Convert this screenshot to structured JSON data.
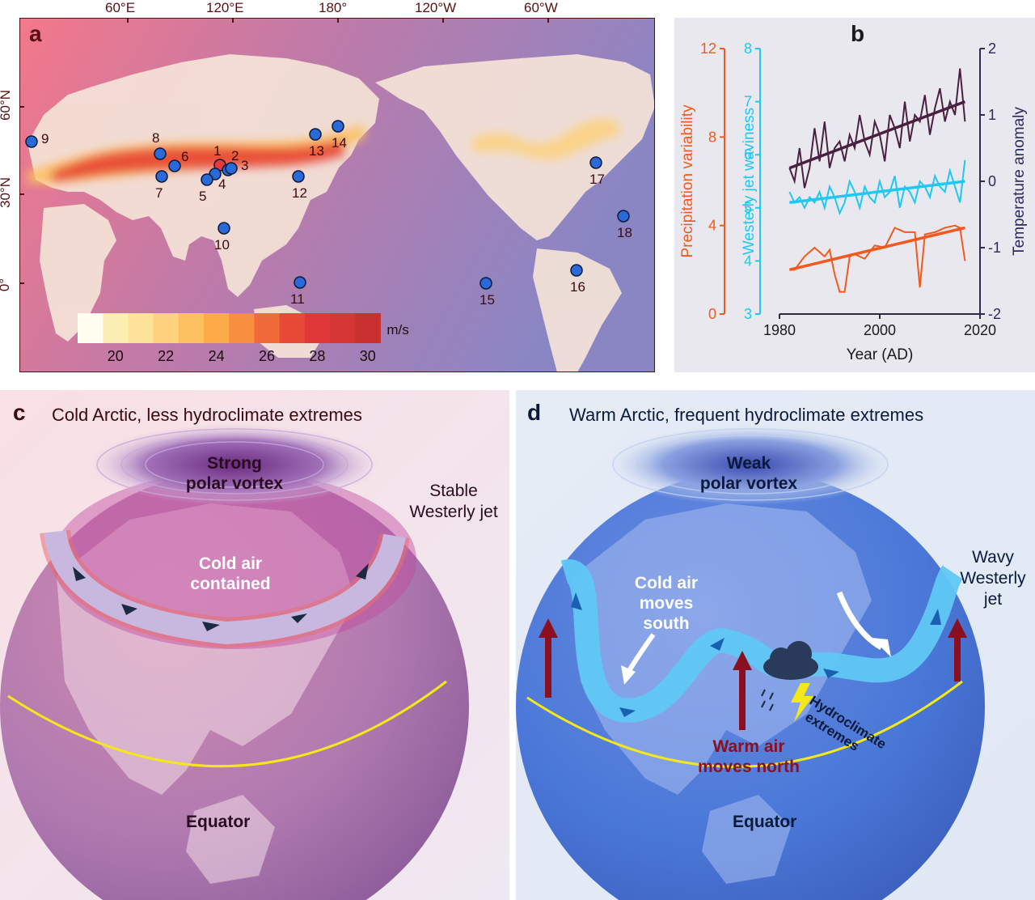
{
  "panel_a": {
    "label": "a",
    "lon_ticks": [
      "60°E",
      "120°E",
      "180°",
      "120°W",
      "60°W"
    ],
    "lat_ticks": [
      "60°N",
      "30°N",
      "0°"
    ],
    "colorbar_ticks": [
      "20",
      "22",
      "24",
      "26",
      "28",
      "30"
    ],
    "colorbar_unit": "m/s",
    "colors": [
      "#fffcf0",
      "#fdeeb4",
      "#fde39a",
      "#fdd27c",
      "#fdc05e",
      "#fdaa48",
      "#f88e40",
      "#f06a3a",
      "#e84a38",
      "#e03838",
      "#d63636",
      "#c83030"
    ],
    "sites": [
      "1",
      "2",
      "3",
      "4",
      "5",
      "6",
      "7",
      "8",
      "9",
      "10",
      "11",
      "12",
      "13",
      "14",
      "15",
      "16",
      "17",
      "18"
    ]
  },
  "panel_b": {
    "label": "b",
    "xlabel": "Year (AD)",
    "x_ticks": [
      "1980",
      "2000",
      "2020"
    ],
    "left1_label": "Precipitation variability",
    "left1_ticks": [
      "0",
      "4",
      "8",
      "12"
    ],
    "left2_label": "Westerly jet waviness",
    "left2_ticks": [
      "3",
      "4",
      "5",
      "6",
      "7",
      "8"
    ],
    "right_label": "Temperature anomaly",
    "right_ticks": [
      "-2",
      "-1",
      "0",
      "1",
      "2"
    ],
    "colors": {
      "precip": "#f05a1e",
      "waviness": "#1ec8f0",
      "temperature": "#4a2040"
    }
  },
  "chart_data": {
    "type": "line",
    "xlabel": "Year (AD)",
    "xlim": [
      1980,
      2020
    ],
    "series": [
      {
        "name": "Precipitation variability",
        "axis": "left-outer",
        "ylim": [
          0,
          12
        ],
        "x": [
          1982,
          1983,
          1985,
          1987,
          1989,
          1990,
          1991,
          1992,
          1993,
          1994,
          1995,
          1997,
          1999,
          2001,
          2003,
          2005,
          2007,
          2008,
          2009,
          2011,
          2013,
          2015,
          2016,
          2017
        ],
        "y": [
          2.0,
          2.0,
          2.6,
          3.0,
          2.6,
          2.9,
          1.8,
          1.0,
          1.0,
          2.6,
          2.7,
          2.5,
          3.1,
          3.0,
          3.9,
          3.7,
          3.7,
          1.2,
          3.6,
          3.7,
          3.9,
          4.0,
          3.9,
          2.4
        ],
        "trend": [
          2.0,
          3.9
        ]
      },
      {
        "name": "Westerly jet waviness",
        "axis": "left-inner",
        "ylim": [
          3,
          8
        ],
        "x": [
          1982,
          1983,
          1984,
          1985,
          1986,
          1987,
          1988,
          1989,
          1990,
          1991,
          1992,
          1993,
          1994,
          1995,
          1996,
          1997,
          1998,
          1999,
          2000,
          2001,
          2002,
          2003,
          2004,
          2005,
          2006,
          2007,
          2008,
          2009,
          2010,
          2011,
          2012,
          2013,
          2014,
          2015,
          2016,
          2017
        ],
        "y": [
          5.3,
          5.1,
          5.2,
          5.0,
          5.2,
          5.1,
          5.3,
          5.0,
          5.4,
          5.2,
          4.9,
          5.1,
          5.5,
          5.3,
          5.0,
          5.4,
          5.2,
          5.1,
          5.5,
          5.2,
          5.3,
          5.6,
          5.0,
          5.4,
          5.3,
          5.1,
          5.5,
          5.4,
          5.2,
          5.6,
          5.4,
          5.3,
          5.7,
          5.4,
          5.1,
          5.9
        ],
        "trend": [
          5.1,
          5.5
        ]
      },
      {
        "name": "Temperature anomaly",
        "axis": "right",
        "ylim": [
          -2,
          2
        ],
        "x": [
          1982,
          1983,
          1984,
          1985,
          1986,
          1987,
          1988,
          1989,
          1990,
          1991,
          1992,
          1993,
          1994,
          1995,
          1996,
          1997,
          1998,
          1999,
          2000,
          2001,
          2002,
          2003,
          2004,
          2005,
          2006,
          2007,
          2008,
          2009,
          2010,
          2011,
          2012,
          2013,
          2014,
          2015,
          2016,
          2017
        ],
        "y": [
          0.2,
          0.0,
          0.5,
          -0.1,
          0.2,
          0.8,
          0.3,
          0.9,
          0.2,
          0.5,
          0.6,
          0.3,
          0.7,
          0.5,
          1.0,
          0.6,
          0.4,
          0.9,
          0.7,
          0.3,
          1.0,
          0.8,
          0.5,
          1.2,
          0.6,
          1.0,
          0.9,
          1.3,
          0.7,
          1.1,
          1.4,
          0.9,
          1.2,
          1.0,
          1.7,
          0.9
        ],
        "trend": [
          0.2,
          1.2
        ]
      }
    ]
  },
  "panel_c": {
    "label": "c",
    "title": "Cold Arctic, less hydroclimate extremes",
    "vortex": [
      "Strong",
      "polar vortex"
    ],
    "jet": [
      "Stable",
      "Westerly jet"
    ],
    "cold_air": [
      "Cold air",
      "contained"
    ],
    "equator": "Equator"
  },
  "panel_d": {
    "label": "d",
    "title": "Warm Arctic, frequent hydroclimate extremes",
    "vortex": [
      "Weak",
      "polar vortex"
    ],
    "jet": [
      "Wavy",
      "Westerly",
      "jet"
    ],
    "cold_air": [
      "Cold air",
      "moves",
      "south"
    ],
    "warm_air": [
      "Warm air",
      "moves north"
    ],
    "extremes": [
      "Hydroclimate",
      "extremes"
    ],
    "equator": "Equator"
  }
}
